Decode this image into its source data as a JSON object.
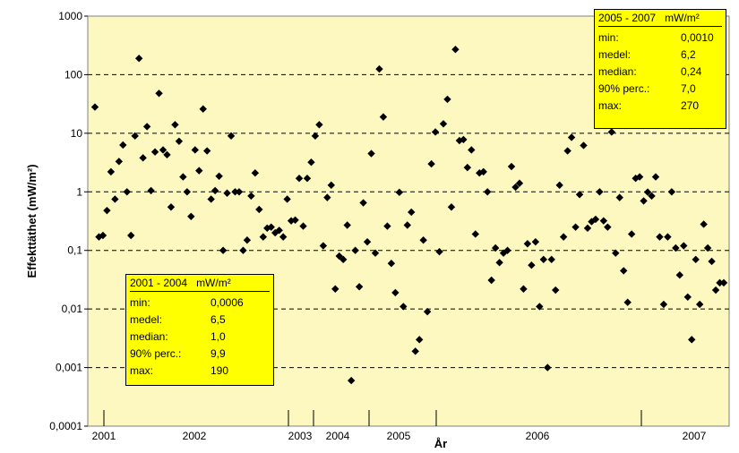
{
  "chart_data": {
    "type": "scatter",
    "title": "",
    "xlabel": "År",
    "ylabel": "Effekttäthet (mW/m²)",
    "y_scale": "log",
    "ylim": [
      0.0001,
      1000
    ],
    "x_ticks": [
      "2001",
      "2002",
      "2003",
      "2004",
      "2005",
      "2006",
      "2007"
    ],
    "y_ticks": [
      "0,0001",
      "0,001",
      "0,01",
      "0,1",
      "1",
      "10",
      "100",
      "1000"
    ],
    "grid": "horizontal dashed",
    "background": "#fdf8c0",
    "marker": "diamond",
    "marker_color": "#000000",
    "points_order": "chronological, x given as point index along time axis",
    "series": [
      {
        "values": [
          28,
          0.17,
          0.18,
          0.48,
          2.2,
          0.75,
          3.3,
          6.3,
          1.0,
          0.18,
          9,
          190,
          3.8,
          13,
          1.05,
          4.8,
          48,
          5.2,
          4.3,
          0.55,
          14,
          7.3,
          1.8,
          1.0,
          0.38,
          5.2,
          2.3,
          26,
          5.0,
          0.75,
          1.05,
          1.85,
          0.1,
          0.95,
          9,
          1.0,
          1.0,
          0.1,
          0.15,
          0.85,
          2.1,
          0.5,
          0.17,
          0.24,
          0.25,
          0.2,
          0.22,
          0.17,
          0.75,
          0.32,
          0.33,
          1.7,
          0.26,
          1.7,
          3.2,
          9,
          14,
          0.12,
          0.8,
          1.3,
          0.022,
          0.08,
          0.07,
          0.27,
          0.0006,
          0.1,
          0.024,
          0.65,
          0.14,
          4.5,
          0.09,
          125,
          19,
          0.26,
          0.06,
          0.019,
          0.98,
          0.011,
          0.27,
          0.45,
          0.0019,
          0.003,
          0.15,
          0.009,
          3,
          10.5,
          0.095,
          14.5,
          38,
          0.55,
          270,
          7.5,
          7.8,
          2.6,
          5.2,
          0.19,
          2.1,
          2.2,
          1.0,
          0.031,
          0.11,
          0.062,
          0.09,
          0.1,
          2.7,
          1.2,
          1.4,
          0.022,
          0.13,
          0.056,
          0.14,
          0.011,
          0.07,
          0.001,
          0.07,
          0.021,
          1.3,
          0.17,
          5,
          8.5,
          0.25,
          0.9,
          6.2,
          0.24,
          0.31,
          0.34,
          1.0,
          0.32,
          0.25,
          10.5,
          0.09,
          0.8,
          0.045,
          0.013,
          0.19,
          1.7,
          1.8,
          0.7,
          0.99,
          0.85,
          1.8,
          0.17,
          0.012,
          0.17,
          1.0,
          0.11,
          0.038,
          0.12,
          0.016,
          0.003,
          0.07,
          0.012,
          0.28,
          0.11,
          0.065,
          0.021,
          0.028,
          0.028
        ]
      }
    ]
  },
  "stats_top": {
    "period": "2005 - 2007",
    "unit": "mW/m²",
    "rows": [
      {
        "key": "min:",
        "value": "0,0010"
      },
      {
        "key": "medel:",
        "value": "6,2"
      },
      {
        "key": "median:",
        "value": "0,24"
      },
      {
        "key": "90% perc.:",
        "value": "7,0"
      },
      {
        "key": "max:",
        "value": "270"
      }
    ]
  },
  "stats_bottom": {
    "period": "2001 - 2004",
    "unit": "mW/m²",
    "rows": [
      {
        "key": "min:",
        "value": "0,0006"
      },
      {
        "key": "medel:",
        "value": "6,5"
      },
      {
        "key": "median:",
        "value": "1,0"
      },
      {
        "key": "90% perc.:",
        "value": "9,9"
      },
      {
        "key": "max:",
        "value": "190"
      }
    ]
  }
}
